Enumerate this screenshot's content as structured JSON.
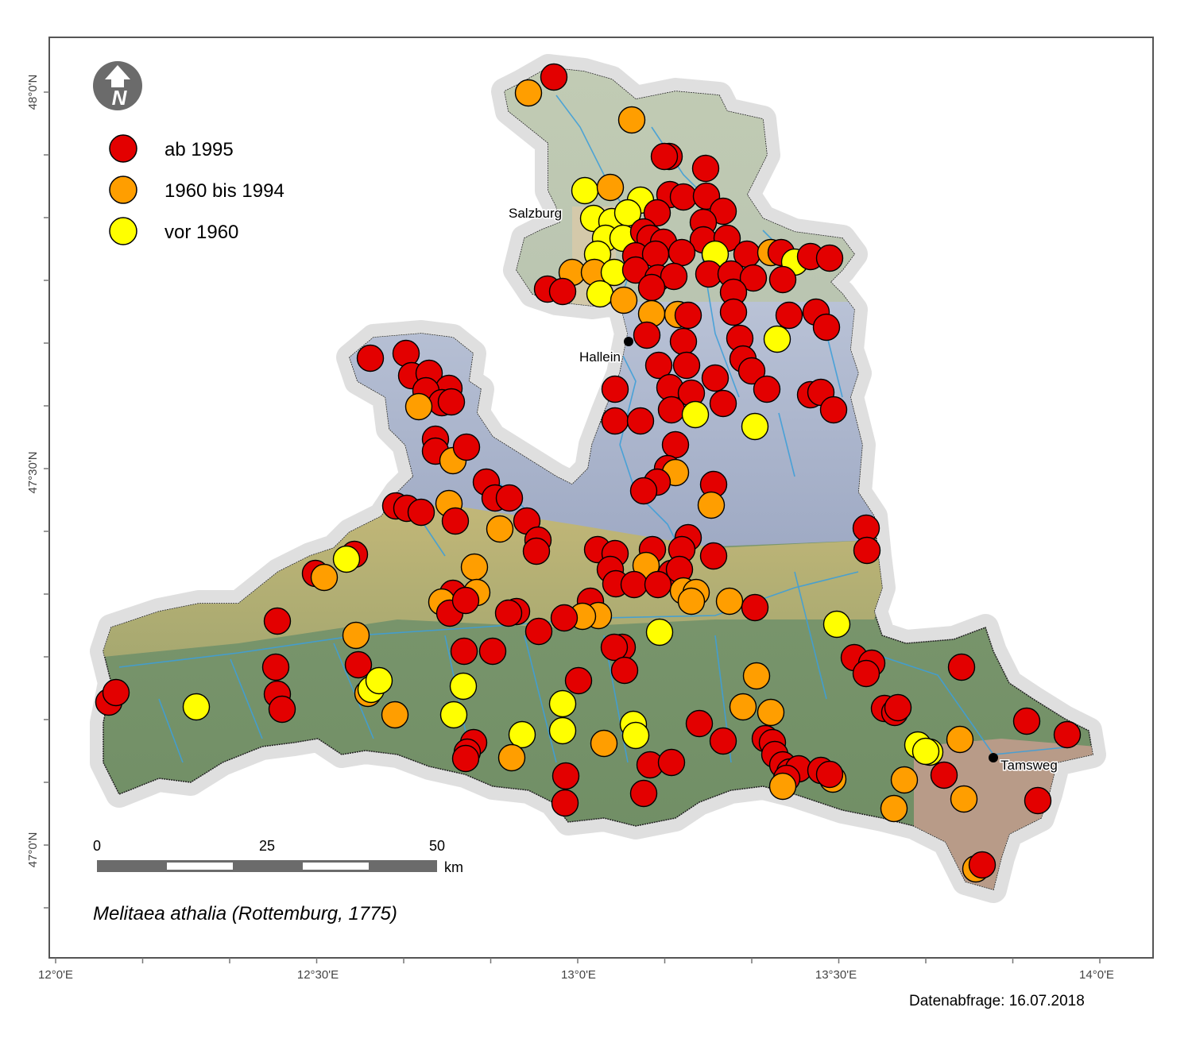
{
  "map": {
    "species": "Melitaea athalia (Rottemburg, 1775)",
    "query_date": "Datenabfrage: 16.07.2018",
    "north_arrow_letter": "N",
    "legend": [
      {
        "label": "ab 1995",
        "color": "#e30000"
      },
      {
        "label": "1960 bis 1994",
        "color": "#ff9e00"
      },
      {
        "label": "vor 1960",
        "color": "#ffff00"
      }
    ],
    "cities": [
      "Salzburg",
      "Hallein",
      "Tamsweg"
    ],
    "scale_bar": {
      "ticks": [
        "0",
        "25",
        "50"
      ],
      "unit": "km"
    },
    "x_ticks": [
      "12°0'E",
      "12°30'E",
      "13°0'E",
      "13°30'E",
      "14°0'E"
    ],
    "y_ticks": [
      "48°0'N",
      "47°30'N",
      "47°0'N"
    ],
    "colors": {
      "ab_1995": "#e30000",
      "1960_bis_1994": "#ff9e00",
      "vor_1960": "#ffff00",
      "north_zone": "#b8c7a9",
      "limestone_alps": "#a9b5cc",
      "greywacke": "#b3a86a",
      "central_alps": "#7e9a6d",
      "lungau": "#b89b88",
      "rivers": "#3f9fd8"
    }
  }
}
